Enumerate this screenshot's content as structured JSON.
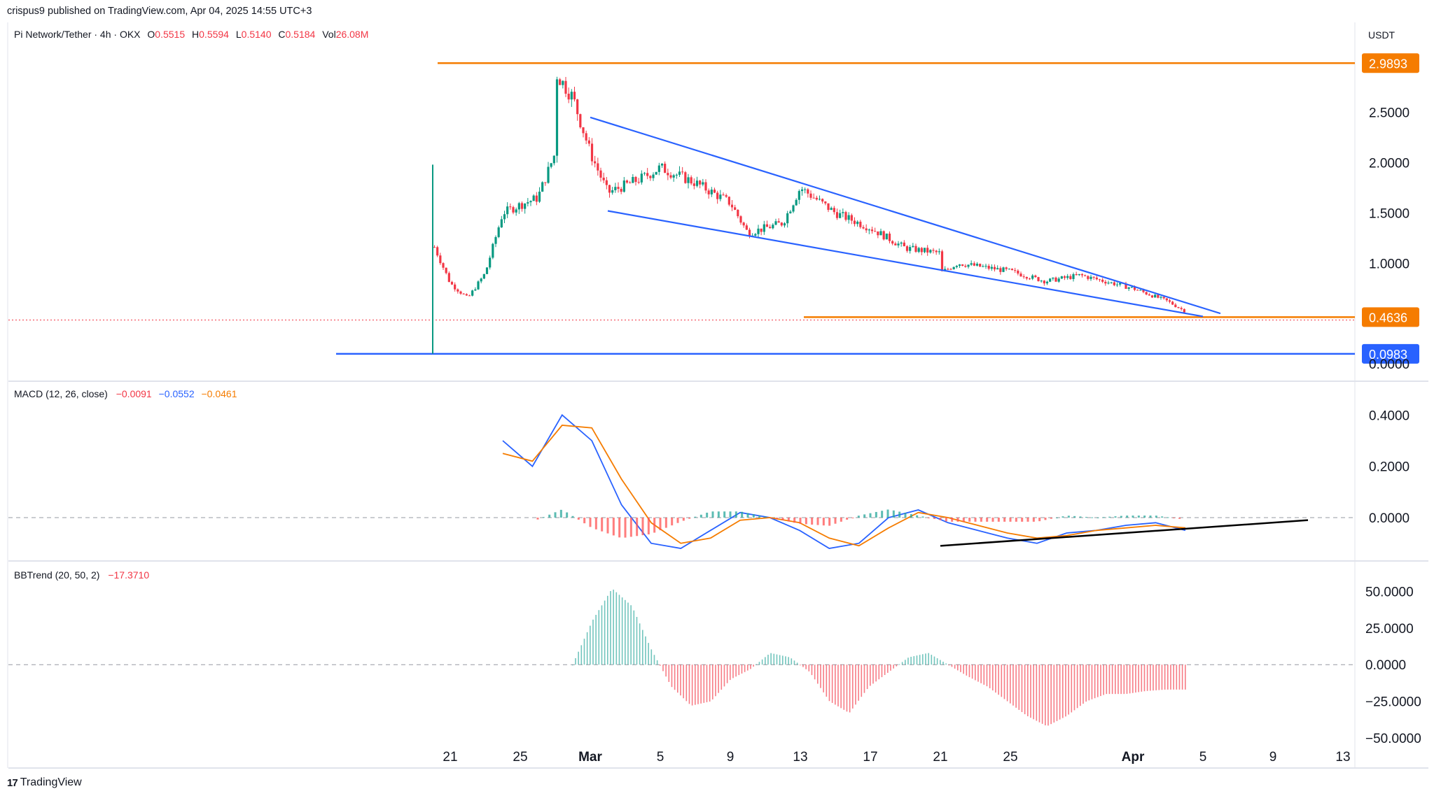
{
  "header": {
    "publisher": "crispus9 published on TradingView.com, Apr 04, 2025 14:55 UTC+3"
  },
  "footer": {
    "brand": "TradingView",
    "logo_glyph": "17"
  },
  "chart_data": [
    {
      "type": "candlestick",
      "pane": "price",
      "symbol": "Pi Network/Tether · 4h · OKX",
      "ohlc_labels": {
        "O": "O",
        "o": "0.5515",
        "H": "H",
        "h": "0.5594",
        "L": "L",
        "l": "0.5140",
        "C": "C",
        "c": "0.5184",
        "V": "Vol",
        "v": "26.08M"
      },
      "currency": "USDT",
      "y_ticks": [
        "2.5000",
        "2.0000",
        "1.5000",
        "1.0000",
        "0.0000"
      ],
      "ylim": [
        0.0,
        3.2
      ],
      "x_ticks": [
        "21",
        "25",
        "Mar",
        "5",
        "9",
        "13",
        "17",
        "21",
        "25",
        "Apr",
        "5",
        "9",
        "13"
      ],
      "horizontal_levels": [
        {
          "value": 2.9893,
          "label": "2.9893",
          "color": "#f57c00"
        },
        {
          "value": 0.4636,
          "label": "0.4636",
          "color": "#f57c00"
        },
        {
          "value": 0.0983,
          "label": "0.0983",
          "color": "#2962ff"
        }
      ],
      "last_price": 0.5184,
      "wedge": {
        "upper": [
          [
            "Mar 1",
            2.45
          ],
          [
            "Apr 6",
            0.5
          ]
        ],
        "lower": [
          [
            "Mar 2",
            1.52
          ],
          [
            "Apr 5",
            0.47
          ]
        ]
      },
      "price_path_approx": [
        [
          "Feb 20",
          0.1
        ],
        [
          "Feb 20",
          1.2
        ],
        [
          "Feb 21",
          0.8
        ],
        [
          "Feb 22",
          0.65
        ],
        [
          "Feb 23",
          0.9
        ],
        [
          "Feb 24",
          1.5
        ],
        [
          "Feb 25",
          1.58
        ],
        [
          "Feb 26",
          1.65
        ],
        [
          "Feb 27",
          2.1
        ],
        [
          "Feb 27",
          2.9
        ],
        [
          "Feb 28",
          2.65
        ],
        [
          "Mar 1",
          2.1
        ],
        [
          "Mar 2",
          1.7
        ],
        [
          "Mar 4",
          1.85
        ],
        [
          "Mar 5",
          1.95
        ],
        [
          "Mar 7",
          1.8
        ],
        [
          "Mar 9",
          1.6
        ],
        [
          "Mar 10",
          1.3
        ],
        [
          "Mar 12",
          1.4
        ],
        [
          "Mar 13",
          1.75
        ],
        [
          "Mar 15",
          1.5
        ],
        [
          "Mar 17",
          1.35
        ],
        [
          "Mar 19",
          1.15
        ],
        [
          "Mar 21",
          1.1
        ],
        [
          "Mar 21",
          0.9
        ],
        [
          "Mar 22",
          1.0
        ],
        [
          "Mar 25",
          0.92
        ],
        [
          "Mar 27",
          0.82
        ],
        [
          "Mar 29",
          0.88
        ],
        [
          "Apr 1",
          0.75
        ],
        [
          "Apr 3",
          0.62
        ],
        [
          "Apr 4",
          0.52
        ]
      ]
    },
    {
      "type": "line",
      "pane": "macd",
      "title": "MACD (12, 26, close)",
      "values": {
        "histogram": "−0.0091",
        "macd": "−0.0552",
        "signal": "−0.0461"
      },
      "y_ticks": [
        "0.4000",
        "0.2000",
        "0.0000"
      ],
      "ylim": [
        -0.15,
        0.45
      ],
      "series": [
        {
          "name": "MACD",
          "color": "#2962ff",
          "values": [
            0.3,
            0.2,
            0.4,
            0.3,
            0.05,
            -0.1,
            -0.12,
            -0.05,
            0.02,
            0.0,
            -0.05,
            -0.12,
            -0.1,
            0.0,
            0.03,
            -0.02,
            -0.05,
            -0.08,
            -0.1,
            -0.06,
            -0.05,
            -0.03,
            -0.02,
            -0.05
          ]
        },
        {
          "name": "Signal",
          "color": "#f57c00",
          "values": [
            0.25,
            0.22,
            0.36,
            0.35,
            0.15,
            -0.02,
            -0.1,
            -0.08,
            -0.01,
            0.0,
            -0.02,
            -0.08,
            -0.11,
            -0.04,
            0.02,
            0.0,
            -0.03,
            -0.06,
            -0.08,
            -0.07,
            -0.05,
            -0.04,
            -0.03,
            -0.04
          ]
        }
      ],
      "trendline": [
        [
          "Mar 21",
          -0.11
        ],
        [
          "Apr 11",
          -0.01
        ]
      ]
    },
    {
      "type": "bar",
      "pane": "bbtrend",
      "title": "BBTrend (20, 50, 2)",
      "values": {
        "last": "−17.3710"
      },
      "y_ticks": [
        "50.0000",
        "25.0000",
        "0.0000",
        "−25.0000",
        "−50.0000"
      ],
      "ylim": [
        -50,
        55
      ],
      "series_approx": [
        0,
        30,
        52,
        40,
        10,
        -15,
        -28,
        -25,
        -10,
        -3,
        8,
        5,
        -5,
        -25,
        -33,
        -15,
        -5,
        5,
        8,
        0,
        -8,
        -15,
        -25,
        -35,
        -42,
        -35,
        -25,
        -20,
        -20,
        -18,
        -17,
        -17
      ]
    }
  ]
}
